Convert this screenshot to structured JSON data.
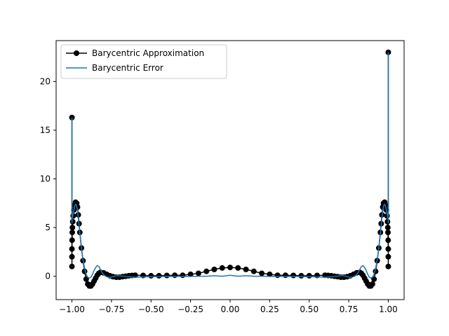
{
  "chart_data": {
    "type": "line",
    "title": "",
    "xlabel": "",
    "ylabel": "",
    "xlim": [
      -1.1,
      1.1
    ],
    "ylim": [
      -2.4,
      24.2
    ],
    "x_ticks": [
      {
        "value": -1.0,
        "label": "−1.00"
      },
      {
        "value": -0.75,
        "label": "−0.75"
      },
      {
        "value": -0.5,
        "label": "−0.50"
      },
      {
        "value": -0.25,
        "label": "−0.25"
      },
      {
        "value": 0.0,
        "label": "0.00"
      },
      {
        "value": 0.25,
        "label": "0.25"
      },
      {
        "value": 0.5,
        "label": "0.50"
      },
      {
        "value": 0.75,
        "label": "0.75"
      },
      {
        "value": 1.0,
        "label": "1.00"
      }
    ],
    "y_ticks": [
      {
        "value": 0,
        "label": "0"
      },
      {
        "value": 5,
        "label": "5"
      },
      {
        "value": 10,
        "label": "10"
      },
      {
        "value": 15,
        "label": "15"
      },
      {
        "value": 20,
        "label": "20"
      }
    ],
    "grid": false,
    "legend_position": "upper-left",
    "series": [
      {
        "name": "Barycentric Approximation",
        "color": "#000000",
        "style": "line-with-circle-markers",
        "x": [
          -1.0,
          -1.0,
          -1.0,
          -1.0,
          -0.999,
          -0.998,
          -0.997,
          -0.995,
          -0.992,
          -0.988,
          -0.983,
          -0.977,
          -0.97,
          -0.965,
          -0.96,
          -0.955,
          -0.95,
          -0.94,
          -0.93,
          -0.92,
          -0.91,
          -0.9,
          -0.89,
          -0.88,
          -0.87,
          -0.86,
          -0.85,
          -0.84,
          -0.83,
          -0.82,
          -0.8,
          -0.78,
          -0.76,
          -0.74,
          -0.72,
          -0.7,
          -0.68,
          -0.66,
          -0.64,
          -0.62,
          -0.6,
          -0.55,
          -0.5,
          -0.45,
          -0.4,
          -0.35,
          -0.3,
          -0.25,
          -0.2,
          -0.15,
          -0.1,
          -0.05,
          0.0,
          0.05,
          0.1,
          0.15,
          0.2,
          0.25,
          0.3,
          0.35,
          0.4,
          0.45,
          0.5,
          0.55,
          0.6,
          0.62,
          0.64,
          0.66,
          0.68,
          0.7,
          0.72,
          0.74,
          0.76,
          0.78,
          0.8,
          0.82,
          0.83,
          0.84,
          0.85,
          0.86,
          0.87,
          0.88,
          0.89,
          0.9,
          0.91,
          0.92,
          0.93,
          0.94,
          0.95,
          0.955,
          0.96,
          0.965,
          0.97,
          0.977,
          0.983,
          0.988,
          0.992,
          0.995,
          0.997,
          0.998,
          0.999,
          1.0,
          1.0,
          1.0,
          1.0
        ],
        "y": [
          16.3,
          1.0,
          2.0,
          2.8,
          3.7,
          4.5,
          5.0,
          5.6,
          6.2,
          6.8,
          7.3,
          7.6,
          7.5,
          7.1,
          6.3,
          5.4,
          4.5,
          2.9,
          1.6,
          0.5,
          -0.3,
          -0.8,
          -1.0,
          -1.0,
          -0.8,
          -0.5,
          -0.2,
          0.1,
          0.3,
          0.4,
          0.35,
          0.2,
          0.05,
          -0.05,
          -0.1,
          -0.1,
          -0.05,
          0.0,
          0.05,
          0.08,
          0.1,
          0.08,
          0.05,
          0.05,
          0.08,
          0.1,
          0.1,
          0.2,
          0.3,
          0.5,
          0.7,
          0.85,
          0.9,
          0.85,
          0.7,
          0.5,
          0.3,
          0.2,
          0.1,
          0.1,
          0.08,
          0.05,
          0.05,
          0.08,
          0.1,
          0.08,
          0.05,
          0.0,
          -0.05,
          -0.1,
          -0.1,
          -0.05,
          0.05,
          0.2,
          0.35,
          0.4,
          0.3,
          0.1,
          -0.2,
          -0.5,
          -0.8,
          -1.0,
          -1.0,
          -0.8,
          -0.3,
          0.5,
          1.6,
          2.9,
          4.5,
          5.4,
          6.3,
          7.1,
          7.5,
          7.6,
          7.3,
          6.8,
          6.2,
          5.6,
          5.0,
          4.5,
          3.7,
          2.8,
          2.0,
          1.0,
          23.0
        ]
      },
      {
        "name": "Barycentric Error",
        "color": "#1f77b4",
        "style": "line",
        "x": [
          -1.0,
          -1.0,
          -0.999,
          -0.997,
          -0.995,
          -0.99,
          -0.985,
          -0.98,
          -0.975,
          -0.97,
          -0.965,
          -0.96,
          -0.955,
          -0.95,
          -0.94,
          -0.93,
          -0.92,
          -0.91,
          -0.9,
          -0.89,
          -0.88,
          -0.87,
          -0.86,
          -0.85,
          -0.84,
          -0.83,
          -0.82,
          -0.81,
          -0.8,
          -0.78,
          -0.76,
          -0.74,
          -0.72,
          -0.7,
          -0.65,
          -0.6,
          -0.5,
          -0.4,
          -0.3,
          -0.2,
          -0.15,
          -0.1,
          -0.05,
          0.0,
          0.05,
          0.1,
          0.15,
          0.2,
          0.3,
          0.4,
          0.5,
          0.6,
          0.65,
          0.7,
          0.72,
          0.74,
          0.76,
          0.78,
          0.8,
          0.81,
          0.82,
          0.83,
          0.84,
          0.85,
          0.86,
          0.87,
          0.88,
          0.89,
          0.9,
          0.91,
          0.92,
          0.93,
          0.94,
          0.95,
          0.955,
          0.96,
          0.965,
          0.97,
          0.975,
          0.98,
          0.985,
          0.99,
          0.995,
          0.997,
          0.999,
          1.0,
          1.0
        ],
        "y": [
          16.3,
          5.5,
          5.8,
          6.0,
          6.2,
          6.6,
          7.0,
          7.3,
          7.4,
          7.2,
          6.7,
          6.0,
          5.2,
          4.4,
          2.9,
          1.7,
          0.8,
          0.2,
          -0.1,
          -0.2,
          -0.1,
          0.2,
          0.6,
          0.9,
          1.1,
          1.0,
          0.7,
          0.4,
          0.15,
          -0.05,
          -0.12,
          -0.05,
          0.05,
          0.05,
          -0.05,
          -0.1,
          -0.05,
          -0.02,
          -0.03,
          0.0,
          0.0,
          0.05,
          0.0,
          0.1,
          0.0,
          0.05,
          0.0,
          0.0,
          -0.03,
          -0.02,
          -0.05,
          -0.1,
          -0.05,
          0.05,
          0.05,
          -0.05,
          -0.12,
          -0.05,
          0.15,
          0.4,
          0.7,
          1.0,
          1.1,
          0.9,
          0.6,
          0.2,
          -0.1,
          -0.2,
          -0.1,
          0.2,
          0.8,
          1.7,
          2.9,
          4.4,
          5.2,
          6.0,
          6.7,
          7.2,
          7.4,
          7.3,
          7.0,
          6.6,
          6.2,
          6.0,
          5.8,
          5.5,
          23.0
        ]
      }
    ]
  }
}
